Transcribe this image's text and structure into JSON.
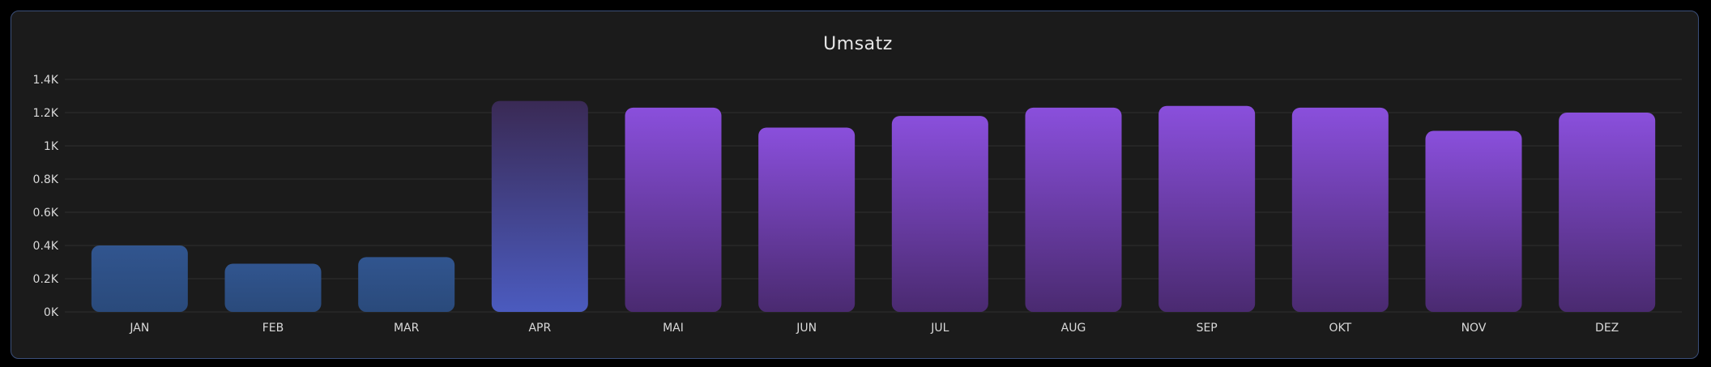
{
  "chart_data": {
    "type": "bar",
    "title": "Umsatz",
    "xlabel": "",
    "ylabel": "",
    "ylim": [
      0,
      1400
    ],
    "yticks": [
      {
        "value": 0,
        "label": "0K"
      },
      {
        "value": 200,
        "label": "0.2K"
      },
      {
        "value": 400,
        "label": "0.4K"
      },
      {
        "value": 600,
        "label": "0.6K"
      },
      {
        "value": 800,
        "label": "0.8K"
      },
      {
        "value": 1000,
        "label": "1K"
      },
      {
        "value": 1200,
        "label": "1.2K"
      },
      {
        "value": 1400,
        "label": "1.4K"
      }
    ],
    "grid": true,
    "categories": [
      "JAN",
      "FEB",
      "MAR",
      "APR",
      "MAI",
      "JUN",
      "JUL",
      "AUG",
      "SEP",
      "OKT",
      "NOV",
      "DEZ"
    ],
    "values": [
      400,
      290,
      330,
      1270,
      1230,
      1110,
      1180,
      1230,
      1240,
      1230,
      1090,
      1200
    ],
    "bar_styles": [
      "blue",
      "blue",
      "blue",
      "highlight",
      "purple",
      "purple",
      "purple",
      "purple",
      "purple",
      "purple",
      "purple",
      "purple"
    ],
    "colors": {
      "blue_top": "#31558f",
      "blue_bottom": "#2a4a7b",
      "highlight_top": "#3a2a55",
      "highlight_bottom": "#4b5bbf",
      "purple_top": "#8a4fdc",
      "purple_bottom": "#4a2a70"
    }
  }
}
